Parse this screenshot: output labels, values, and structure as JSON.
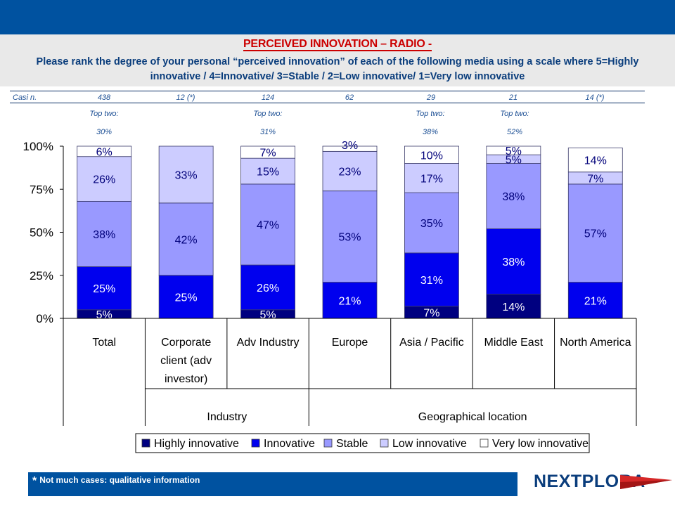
{
  "header": {
    "title": "PERCEIVED INNOVATION – RADIO -",
    "subtitle_line1": "Please rank the degree of your personal “perceived innovation” of each of the following media using a scale where  5=Highly",
    "subtitle_line2": "innovative / 4=Innovative/ 3=Stable / 2=Low innovative/ 1=Very low innovative"
  },
  "casi": {
    "label": "Casi n.",
    "values": [
      "438",
      "12 (*)",
      "124",
      "62",
      "29",
      "21",
      "14 (*)"
    ]
  },
  "top_two": [
    {
      "label": "Top two:",
      "value": "30%"
    },
    {
      "label": "",
      "value": ""
    },
    {
      "label": "Top two:",
      "value": "31%"
    },
    {
      "label": "",
      "value": ""
    },
    {
      "label": "Top two:",
      "value": "38%"
    },
    {
      "label": "Top two:",
      "value": "52%"
    },
    {
      "label": "",
      "value": ""
    }
  ],
  "groups": [
    {
      "label": "Industry"
    },
    {
      "label": "Geographical location"
    }
  ],
  "chart_data": {
    "type": "bar",
    "stacked": true,
    "categories": [
      "Total",
      "Corporate client (adv investor)",
      "Adv Industry",
      "Europe",
      "Asia / Pacific",
      "Middle East",
      "North America"
    ],
    "category_lines": [
      [
        "Total"
      ],
      [
        "Corporate",
        "client (adv",
        "investor)"
      ],
      [
        "Adv Industry"
      ],
      [
        "Europe"
      ],
      [
        "Asia / Pacific"
      ],
      [
        "Middle East"
      ],
      [
        "North America"
      ]
    ],
    "ylim": [
      0,
      100
    ],
    "yticks": [
      {
        "value": 0,
        "label": "0%"
      },
      {
        "value": 25,
        "label": "25%"
      },
      {
        "value": 50,
        "label": "50%"
      },
      {
        "value": 75,
        "label": "75%"
      },
      {
        "value": 100,
        "label": "100%"
      }
    ],
    "legend_position": "bottom",
    "series": [
      {
        "name": "Highly innovative",
        "color": "#000080",
        "label_color": "#ffffff",
        "values": [
          5,
          0,
          5,
          0,
          7,
          14,
          0
        ],
        "labels": [
          "5%",
          "",
          "5%",
          "",
          "7%",
          "14%",
          ""
        ]
      },
      {
        "name": "Innovative",
        "color": "#0000ee",
        "label_color": "#ffffff",
        "values": [
          25,
          25,
          26,
          21,
          31,
          38,
          21
        ],
        "labels": [
          "25%",
          "25%",
          "26%",
          "21%",
          "31%",
          "38%",
          "21%"
        ]
      },
      {
        "name": "Stable",
        "color": "#9999ff",
        "label_color": "#00007a",
        "values": [
          38,
          42,
          47,
          53,
          35,
          38,
          57
        ],
        "labels": [
          "38%",
          "42%",
          "47%",
          "53%",
          "35%",
          "38%",
          "57%"
        ]
      },
      {
        "name": "Low innovative",
        "color": "#ccccff",
        "label_color": "#00007a",
        "values": [
          26,
          33,
          15,
          23,
          17,
          5,
          7
        ],
        "labels": [
          "26%",
          "33%",
          "15%",
          "23%",
          "17%",
          "5%",
          "7%"
        ]
      },
      {
        "name": "Very low innovative",
        "color": "#ffffff",
        "label_color": "#00007a",
        "values": [
          6,
          0,
          7,
          3,
          10,
          5,
          14
        ],
        "labels": [
          "6%",
          "",
          "7%",
          "3%",
          "10%",
          "5%",
          "14%"
        ]
      }
    ]
  },
  "footer": {
    "asterisk": "*",
    "note": "Not much cases: qualitative information",
    "logo": "NEXTPLORA"
  },
  "colors": {
    "brand_blue": "#0052a0",
    "title_red": "#cc0000",
    "text_navy": "#0a3d7c"
  }
}
